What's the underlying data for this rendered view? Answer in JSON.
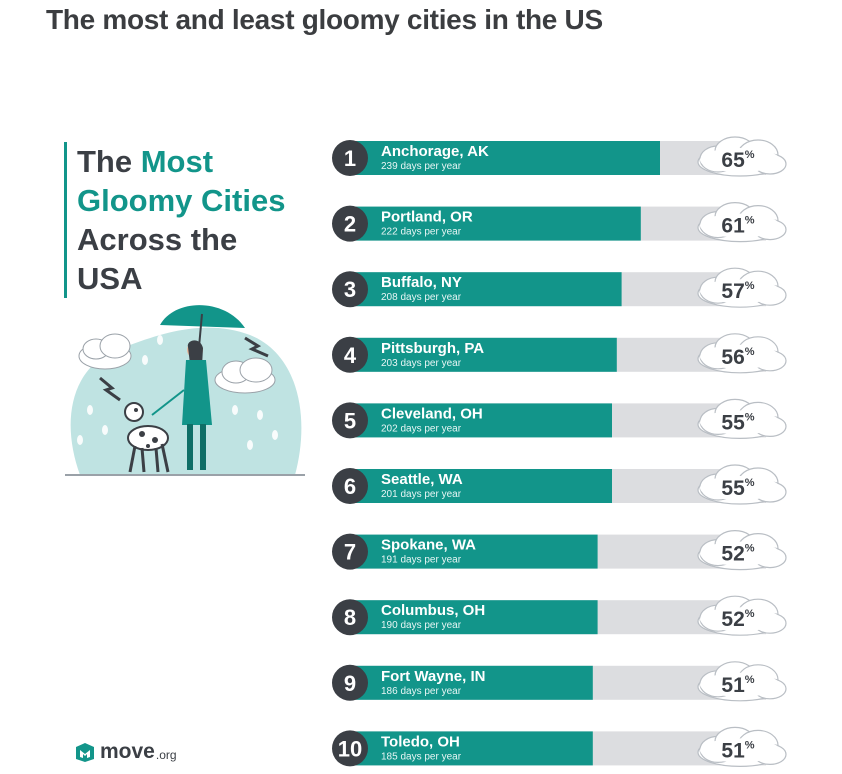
{
  "page": {
    "title": "The most and least gloomy cities in the US"
  },
  "infographic": {
    "heading_line1_dark": "The ",
    "heading_line1_accent": "Most",
    "heading_line2_accent": "Gloomy Cities",
    "heading_line3": "Across the",
    "heading_line4": "USA",
    "brand_name": "move",
    "brand_suffix": ".org"
  },
  "colors": {
    "accent": "#12958a",
    "track": "#dcdde0",
    "badge": "#3b3f45",
    "text_dark": "#3b3f45"
  },
  "chart_data": {
    "type": "bar",
    "orientation": "horizontal",
    "categories": [
      "Anchorage, AK",
      "Portland, OR",
      "Buffalo, NY",
      "Pittsburgh, PA",
      "Cleveland, OH",
      "Seattle, WA",
      "Spokane, WA",
      "Columbus, OH",
      "Fort Wayne, IN",
      "Toledo, OH"
    ],
    "ranks": [
      "1",
      "2",
      "3",
      "4",
      "5",
      "6",
      "7",
      "8",
      "9",
      "10"
    ],
    "days_labels": [
      "239 days per year",
      "222 days per year",
      "208 days per year",
      "203 days per year",
      "202 days per year",
      "201 days per year",
      "191 days per year",
      "190 days per year",
      "186 days per year",
      "185 days per year"
    ],
    "values": [
      65,
      61,
      57,
      56,
      55,
      55,
      52,
      52,
      51,
      51
    ],
    "value_labels": [
      "65",
      "61",
      "57",
      "56",
      "55",
      "55",
      "52",
      "52",
      "51",
      "51"
    ],
    "unit": "%",
    "days": [
      239,
      222,
      208,
      203,
      202,
      201,
      191,
      190,
      186,
      185
    ]
  }
}
